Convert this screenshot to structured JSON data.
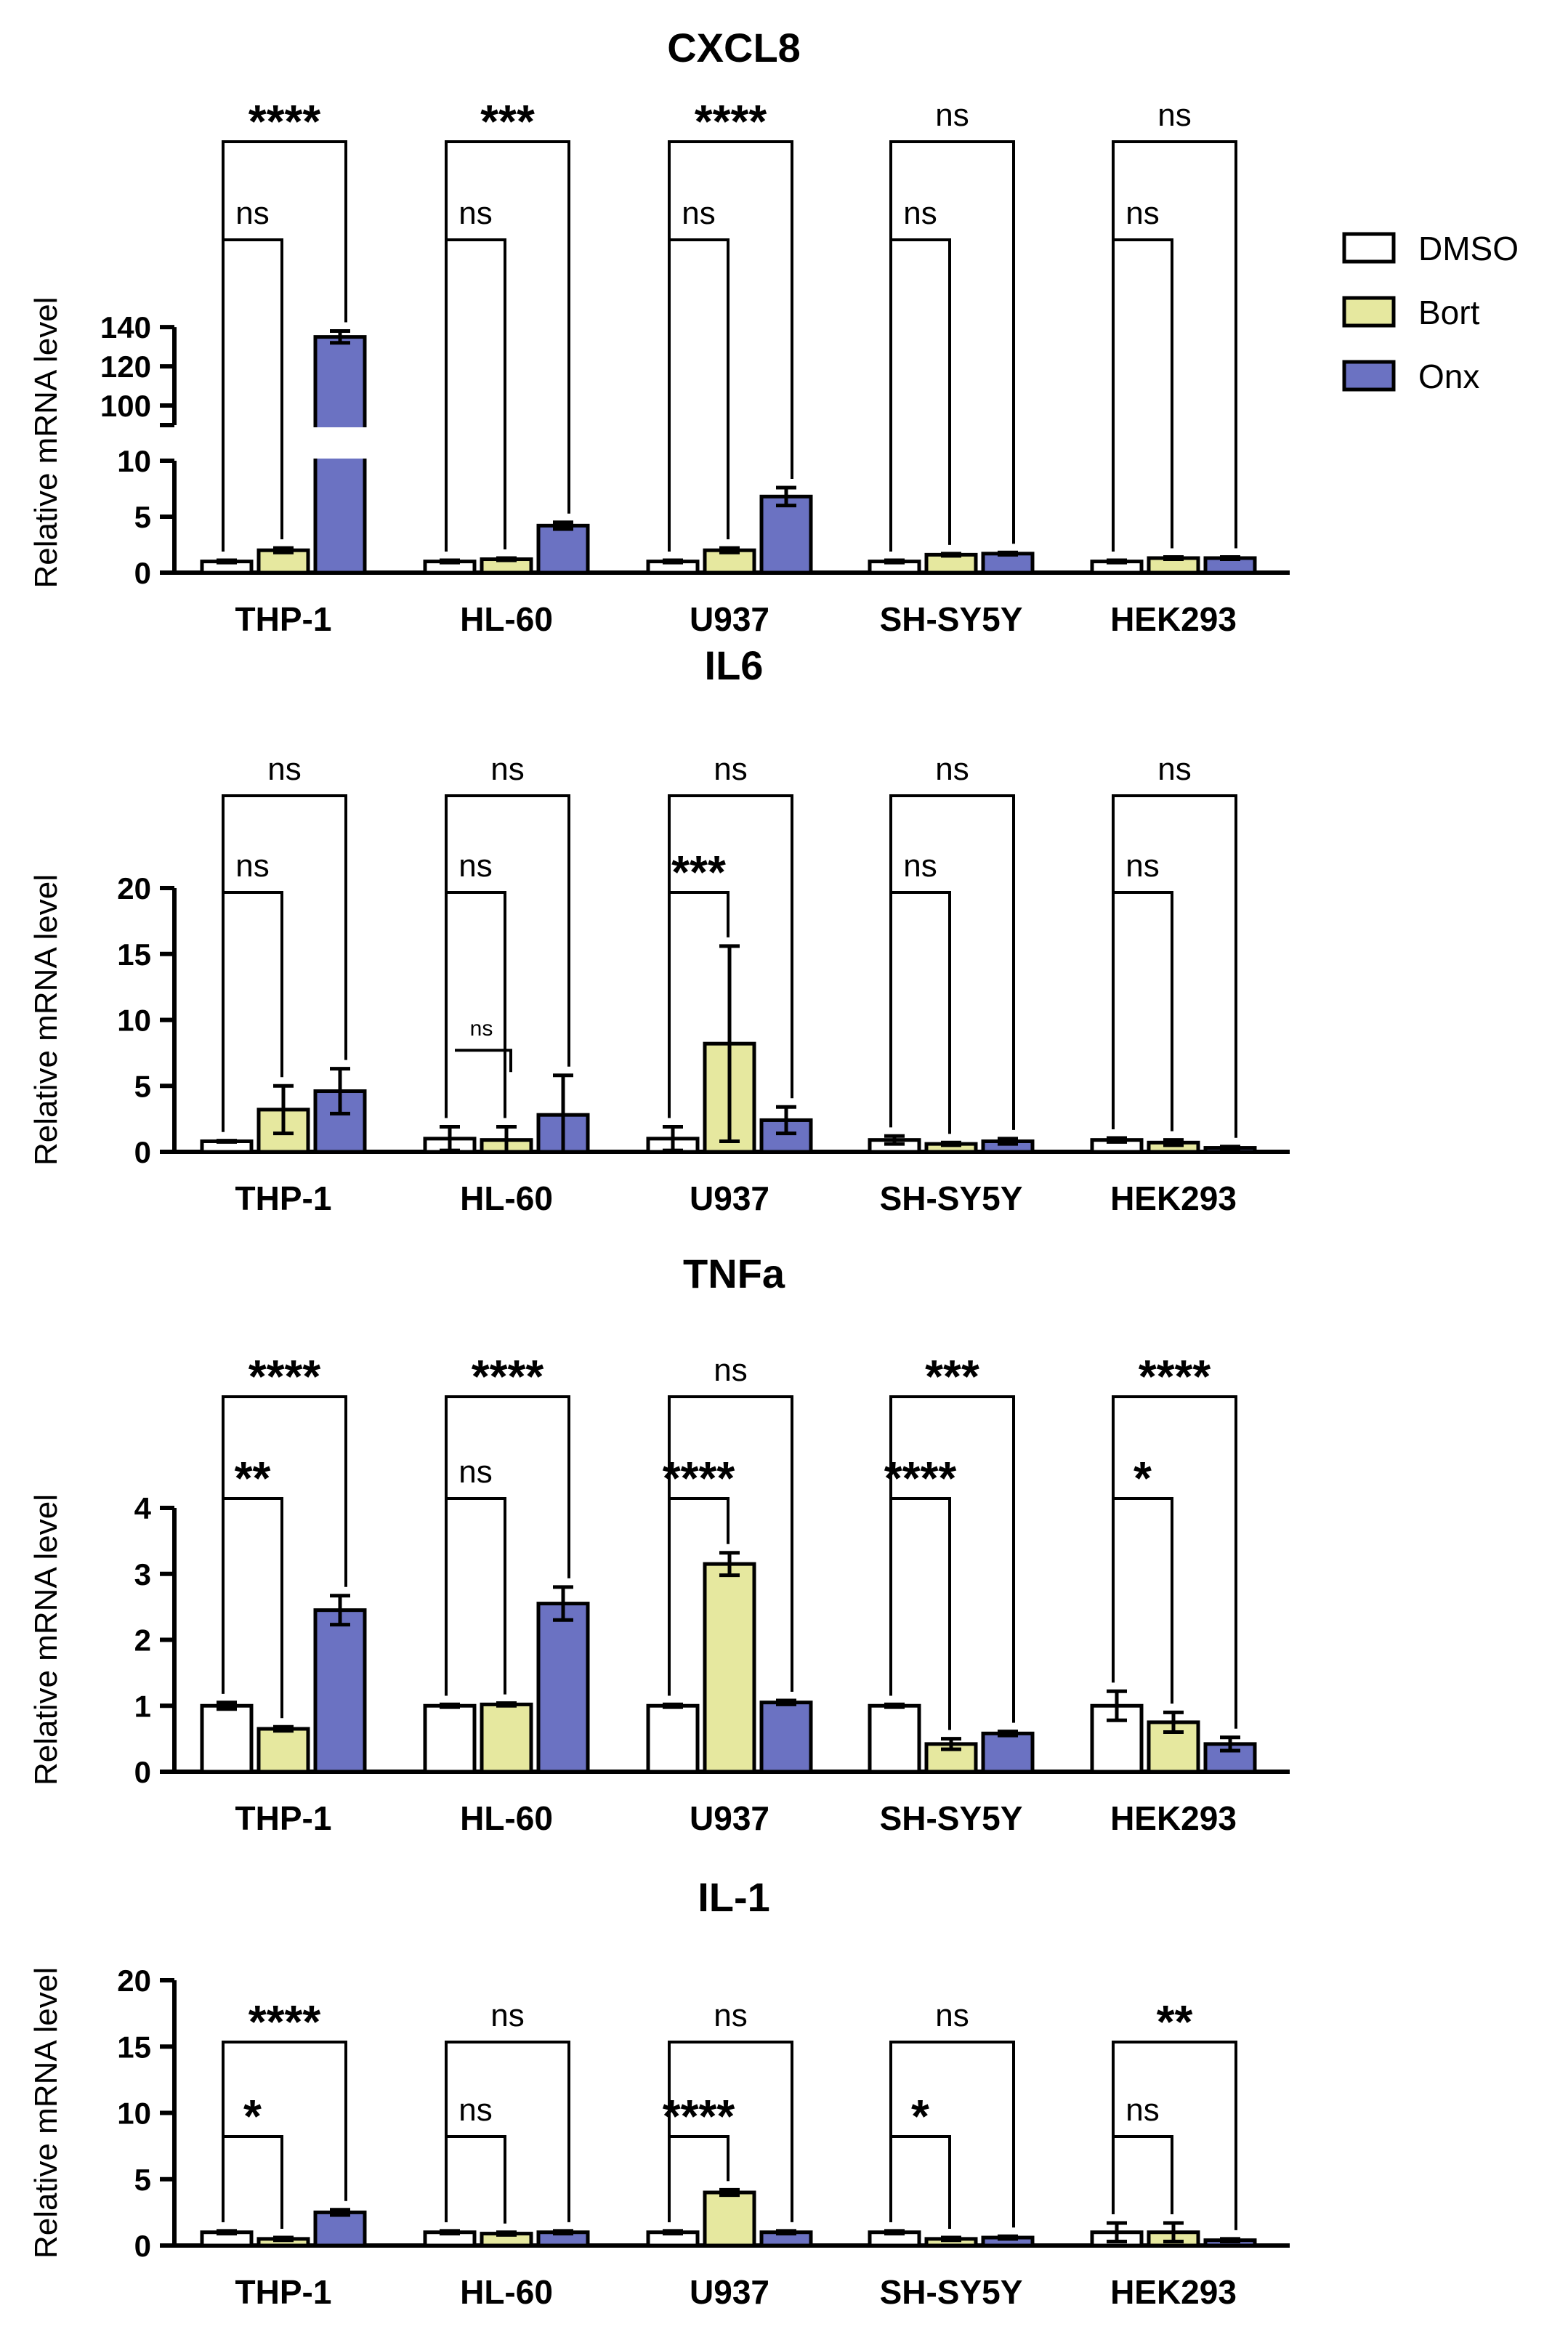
{
  "legend": [
    {
      "name": "DMSO",
      "color": "#ffffff"
    },
    {
      "name": "Bort",
      "color": "#e6e89f"
    },
    {
      "name": "Onx",
      "color": "#6b72c2"
    }
  ],
  "chart_data": [
    {
      "type": "bar",
      "title": "CXCL8",
      "ylabel": "Relative mRNA level",
      "categories": [
        "THP-1",
        "HL-60",
        "U937",
        "SH-SY5Y",
        "HEK293"
      ],
      "y_ticks": [
        0,
        5,
        10,
        100,
        120,
        140
      ],
      "axis_break": [
        10,
        90
      ],
      "series": [
        {
          "name": "DMSO",
          "values": [
            1.0,
            1.0,
            1.0,
            1.0,
            1.0
          ],
          "errors": [
            0.1,
            0.1,
            0.1,
            0.1,
            0.1
          ]
        },
        {
          "name": "Bort",
          "values": [
            2.0,
            1.2,
            2.0,
            1.6,
            1.3
          ],
          "errors": [
            0.2,
            0.1,
            0.2,
            0.1,
            0.1
          ]
        },
        {
          "name": "Onx",
          "values": [
            135.0,
            4.2,
            6.8,
            1.7,
            1.3
          ],
          "errors": [
            3.0,
            0.3,
            0.8,
            0.1,
            0.1
          ]
        }
      ],
      "significance": [
        {
          "bort": "ns",
          "onx": "****"
        },
        {
          "bort": "ns",
          "onx": "***"
        },
        {
          "bort": "ns",
          "onx": "****"
        },
        {
          "bort": "ns",
          "onx": "ns"
        },
        {
          "bort": "ns",
          "onx": "ns"
        }
      ]
    },
    {
      "type": "bar",
      "title": "IL6",
      "ylabel": "Relative mRNA level",
      "categories": [
        "THP-1",
        "HL-60",
        "U937",
        "SH-SY5Y",
        "HEK293"
      ],
      "y_ticks": [
        0,
        5,
        10,
        15,
        20
      ],
      "ylim": [
        0,
        20
      ],
      "series": [
        {
          "name": "DMSO",
          "values": [
            0.8,
            1.0,
            1.0,
            0.9,
            0.9
          ],
          "errors": [
            0.05,
            0.9,
            0.9,
            0.3,
            0.15
          ]
        },
        {
          "name": "Bort",
          "values": [
            3.2,
            0.9,
            8.2,
            0.6,
            0.7
          ],
          "errors": [
            1.8,
            1.0,
            7.4,
            0.1,
            0.2
          ]
        },
        {
          "name": "Onx",
          "values": [
            4.6,
            2.8,
            2.4,
            0.8,
            0.3
          ],
          "errors": [
            1.7,
            3.0,
            1.0,
            0.2,
            0.1
          ]
        }
      ],
      "significance": [
        {
          "bort": "ns",
          "onx": "ns"
        },
        {
          "bort": "ns",
          "onx": "ns",
          "extra": "ns"
        },
        {
          "bort": "***",
          "onx": "ns"
        },
        {
          "bort": "ns",
          "onx": "ns"
        },
        {
          "bort": "ns",
          "onx": "ns"
        }
      ]
    },
    {
      "type": "bar",
      "title": "TNFa",
      "ylabel": "Relative mRNA level",
      "categories": [
        "THP-1",
        "HL-60",
        "U937",
        "SH-SY5Y",
        "HEK293"
      ],
      "y_ticks": [
        0,
        1,
        2,
        3,
        4
      ],
      "ylim": [
        0,
        4
      ],
      "series": [
        {
          "name": "DMSO",
          "values": [
            1.0,
            1.0,
            1.0,
            1.0,
            1.0
          ],
          "errors": [
            0.05,
            0.02,
            0.02,
            0.02,
            0.22
          ]
        },
        {
          "name": "Bort",
          "values": [
            0.65,
            1.02,
            3.15,
            0.42,
            0.75
          ],
          "errors": [
            0.03,
            0.02,
            0.17,
            0.08,
            0.15
          ]
        },
        {
          "name": "Onx",
          "values": [
            2.45,
            2.55,
            1.05,
            0.58,
            0.42
          ],
          "errors": [
            0.22,
            0.25,
            0.03,
            0.03,
            0.1
          ]
        }
      ],
      "significance": [
        {
          "bort": "**",
          "onx": "****"
        },
        {
          "bort": "ns",
          "onx": "****"
        },
        {
          "bort": "****",
          "onx": "ns"
        },
        {
          "bort": "****",
          "onx": "***"
        },
        {
          "bort": "*",
          "onx": "****"
        }
      ]
    },
    {
      "type": "bar",
      "title": "IL-1",
      "ylabel": "Relative mRNA level",
      "categories": [
        "THP-1",
        "HL-60",
        "U937",
        "SH-SY5Y",
        "HEK293"
      ],
      "y_ticks": [
        0,
        5,
        10,
        15,
        20
      ],
      "ylim": [
        0,
        20
      ],
      "series": [
        {
          "name": "DMSO",
          "values": [
            1.0,
            1.0,
            1.0,
            1.0,
            1.0
          ],
          "errors": [
            0.1,
            0.1,
            0.1,
            0.1,
            0.7
          ]
        },
        {
          "name": "Bort",
          "values": [
            0.5,
            0.9,
            4.0,
            0.5,
            1.0
          ],
          "errors": [
            0.1,
            0.1,
            0.2,
            0.1,
            0.7
          ]
        },
        {
          "name": "Onx",
          "values": [
            2.5,
            1.0,
            1.0,
            0.6,
            0.4
          ],
          "errors": [
            0.2,
            0.1,
            0.1,
            0.1,
            0.1
          ]
        }
      ],
      "significance": [
        {
          "bort": "*",
          "onx": "****"
        },
        {
          "bort": "ns",
          "onx": "ns"
        },
        {
          "bort": "****",
          "onx": "ns"
        },
        {
          "bort": "*",
          "onx": "ns"
        },
        {
          "bort": "ns",
          "onx": "**"
        }
      ]
    }
  ]
}
